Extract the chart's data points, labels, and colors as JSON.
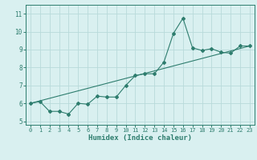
{
  "xlabel": "Humidex (Indice chaleur)",
  "ylabel": "",
  "line_color": "#2e7d6e",
  "bg_color": "#d9f0f0",
  "grid_color": "#b8dada",
  "xlim": [
    -0.5,
    23.5
  ],
  "ylim": [
    4.8,
    11.5
  ],
  "yticks": [
    5,
    6,
    7,
    8,
    9,
    10,
    11
  ],
  "xticks": [
    0,
    1,
    2,
    3,
    4,
    5,
    6,
    7,
    8,
    9,
    10,
    11,
    12,
    13,
    14,
    15,
    16,
    17,
    18,
    19,
    20,
    21,
    22,
    23
  ],
  "series1_x": [
    0,
    1,
    2,
    3,
    4,
    5,
    6,
    7,
    8,
    9,
    10,
    11,
    12,
    13,
    14,
    15,
    16,
    17,
    18,
    19,
    20,
    21,
    22,
    23
  ],
  "series1_y": [
    6.0,
    6.1,
    5.55,
    5.55,
    5.4,
    6.0,
    5.95,
    6.4,
    6.35,
    6.35,
    7.0,
    7.55,
    7.65,
    7.65,
    8.3,
    9.9,
    10.75,
    9.1,
    8.95,
    9.05,
    8.85,
    8.8,
    9.2,
    9.2
  ],
  "trend_x": [
    0,
    23
  ],
  "trend_y": [
    6.0,
    9.2
  ],
  "marker": "D",
  "marker_size": 2.0,
  "line_width": 0.8
}
